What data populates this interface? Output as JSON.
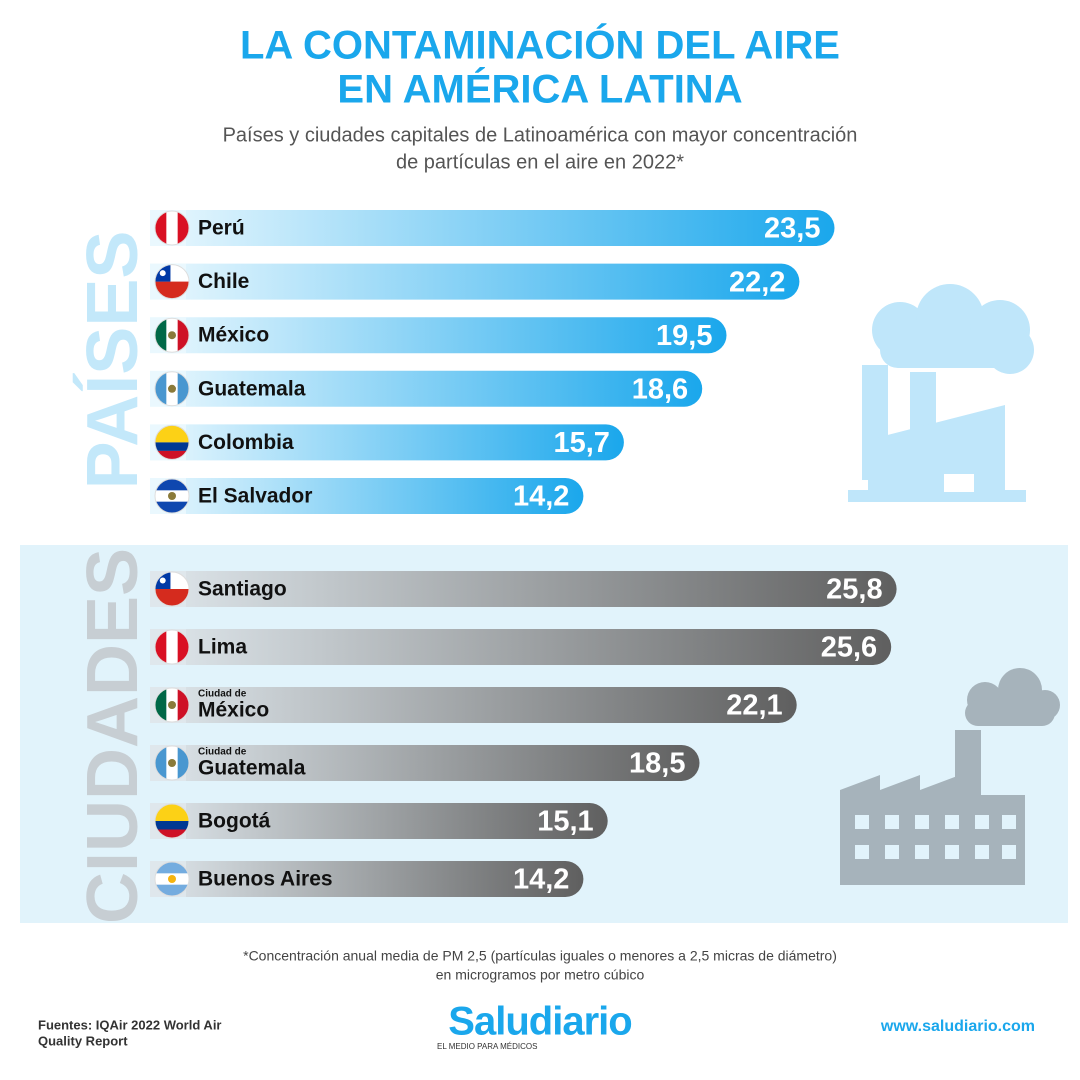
{
  "header": {
    "title_lines": [
      "LA CONTAMINACIÓN DEL AIRE",
      "EN AMÉRICA LATINA"
    ],
    "subtitle_lines": [
      "Países y ciudades capitales de Latinoamérica con mayor concentración",
      "de partículas en el aire en 2022*"
    ]
  },
  "chart_data": [
    {
      "type": "bar",
      "title": "PAÍSES",
      "categories": [
        "Perú",
        "Chile",
        "México",
        "Guatemala",
        "Colombia",
        "El Salvador"
      ],
      "values": [
        23.5,
        22.2,
        19.5,
        18.6,
        15.7,
        14.2
      ],
      "value_labels": [
        "23,5",
        "22,2",
        "19,5",
        "18,6",
        "15,7",
        "14,2"
      ],
      "color": "#1aa7ec"
    },
    {
      "type": "bar",
      "title": "CIUDADES",
      "category_prefixes": [
        null,
        null,
        "Ciudad de",
        "Ciudad de",
        null,
        null
      ],
      "categories": [
        "Santiago",
        "Lima",
        "México",
        "Guatemala",
        "Bogotá",
        "Buenos Aires"
      ],
      "values": [
        25.8,
        25.6,
        22.1,
        18.5,
        15.1,
        14.2
      ],
      "value_labels": [
        "25,8",
        "25,6",
        "22,1",
        "18,5",
        "15,1",
        "14,2"
      ],
      "color": "#5f5f5f"
    }
  ],
  "footer": {
    "note_lines": [
      "*Concentración anual media de PM 2,5 (partículas iguales o menores a 2,5 micras de diámetro)",
      "en microgramos por metro cúbico"
    ],
    "sources_lines": [
      "Fuentes: IQAir 2022 World Air",
      "Quality Report"
    ],
    "logo": "Saludiario",
    "tagline": "EL MEDIO PARA MÉDICOS",
    "url": "www.saludiario.com"
  }
}
